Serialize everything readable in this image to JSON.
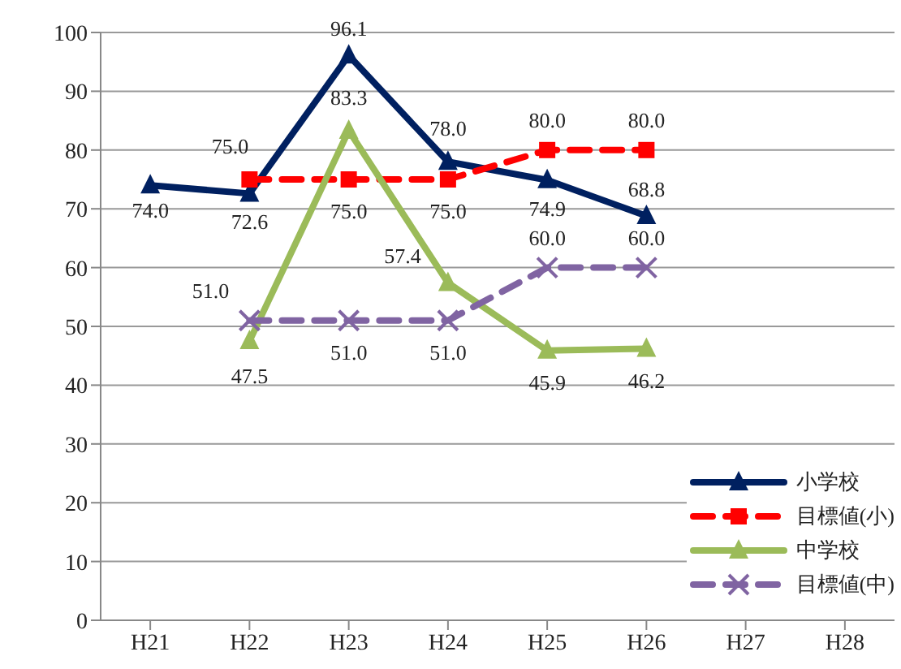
{
  "chart_data": {
    "type": "line",
    "categories": [
      "H21",
      "H22",
      "H23",
      "H24",
      "H25",
      "H26",
      "H27",
      "H28"
    ],
    "series": [
      {
        "name": "小学校",
        "color": "#002060",
        "marker": "triangle",
        "line_style": "solid",
        "values": [
          74.0,
          72.6,
          96.1,
          78.0,
          74.9,
          68.8,
          null,
          null
        ],
        "value_labels": [
          "74.0",
          "72.6",
          "96.1",
          "78.0",
          "74.9",
          "68.8",
          null,
          null
        ]
      },
      {
        "name": "目標値(小)",
        "color": "#ff0000",
        "marker": "square",
        "line_style": "dashed",
        "values": [
          null,
          75.0,
          75.0,
          75.0,
          80.0,
          80.0,
          null,
          null
        ],
        "value_labels": [
          null,
          "75.0",
          "75.0",
          "75.0",
          "80.0",
          "80.0",
          null,
          null
        ]
      },
      {
        "name": "中学校",
        "color": "#9bbb59",
        "marker": "triangle",
        "line_style": "solid",
        "values": [
          null,
          47.5,
          83.3,
          57.4,
          45.9,
          46.2,
          null,
          null
        ],
        "value_labels": [
          null,
          "47.5",
          "83.3",
          "57.4",
          "45.9",
          "46.2",
          null,
          null
        ]
      },
      {
        "name": "目標値(中)",
        "color": "#8064a2",
        "marker": "cross",
        "line_style": "dashed",
        "values": [
          null,
          51.0,
          51.0,
          51.0,
          60.0,
          60.0,
          null,
          null
        ],
        "value_labels": [
          null,
          "51.0",
          "51.0",
          "51.0",
          "60.0",
          "60.0",
          null,
          null
        ]
      }
    ],
    "ylim": [
      0,
      100
    ],
    "yticks": [
      0,
      10,
      20,
      30,
      40,
      50,
      60,
      70,
      80,
      90,
      100
    ],
    "grid": "y",
    "legend": "bottom right"
  }
}
